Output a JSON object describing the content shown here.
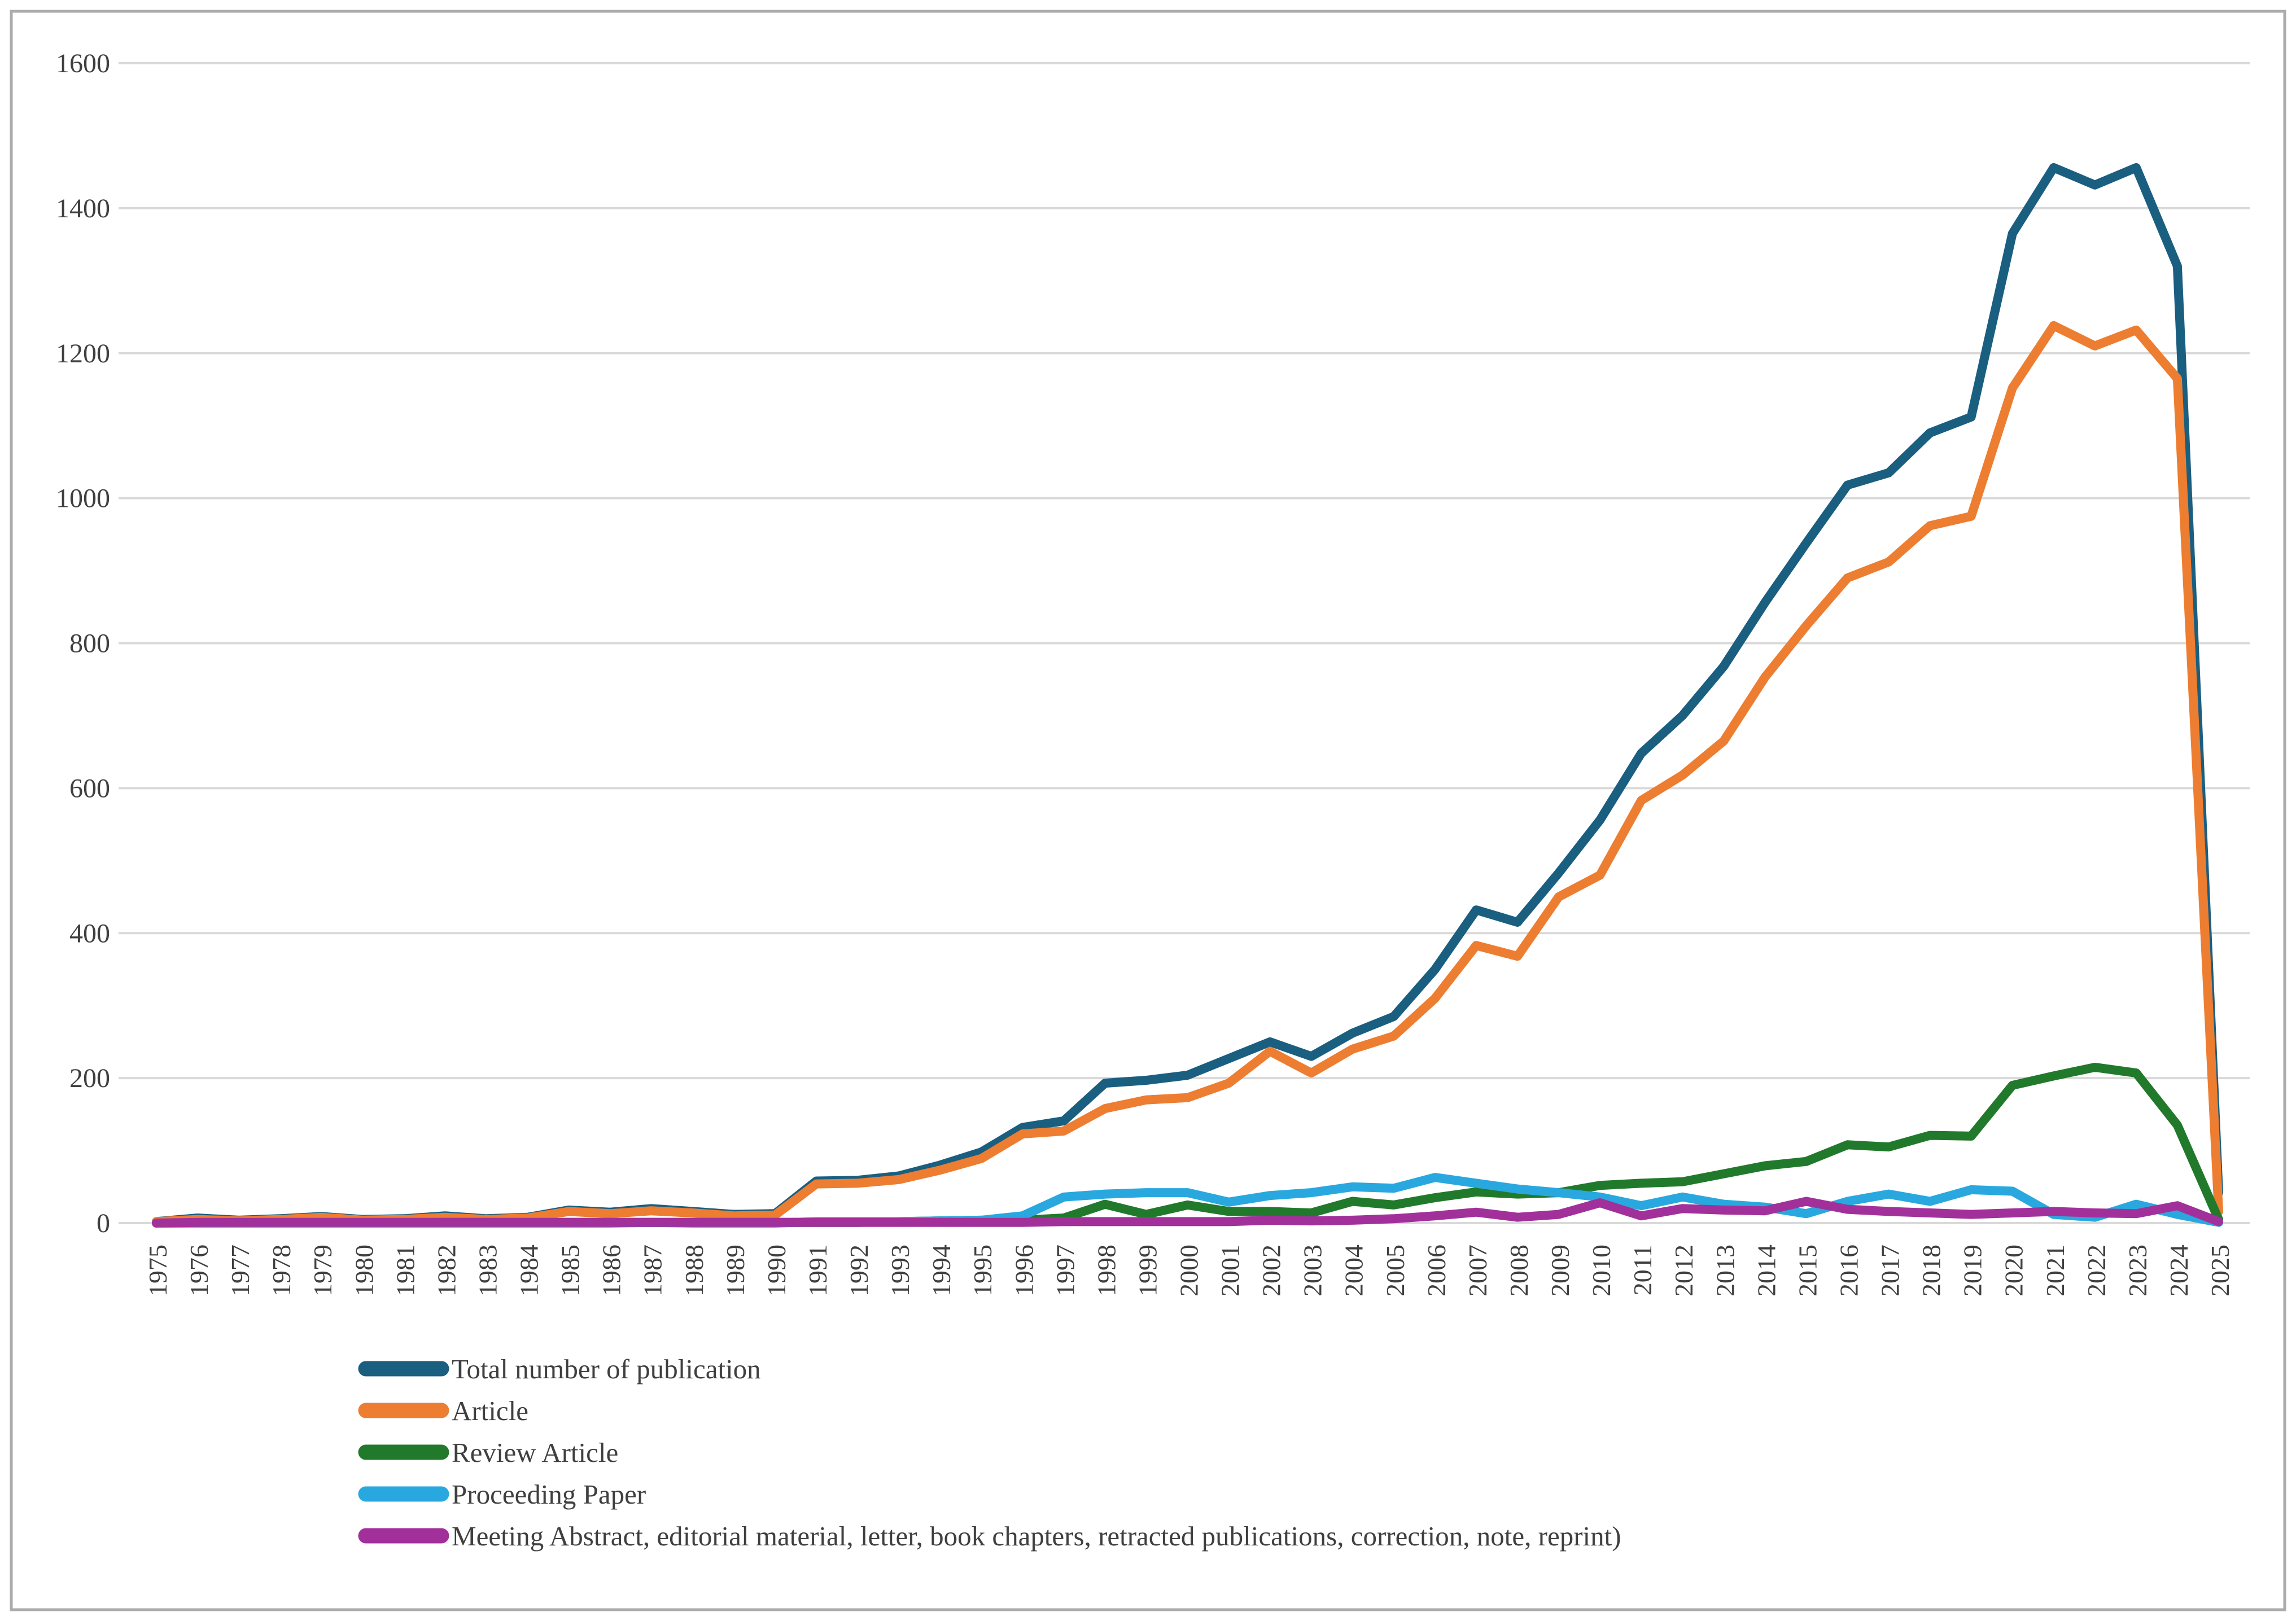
{
  "frame": {
    "border_color": "#ABABAB",
    "background": "#FFFFFF"
  },
  "axis": {
    "tick_color": "#3F3F3F",
    "grid_color": "#D9D9D9",
    "y_tick_labels": [
      "0",
      "200",
      "400",
      "600",
      "800",
      "1000",
      "1200",
      "1400",
      "1600"
    ]
  },
  "legend": {
    "items": [
      {
        "label": "Total number of publication",
        "color": "#1A5E80"
      },
      {
        "label": "Article",
        "color": "#ED7D31"
      },
      {
        "label": "Review Article",
        "color": "#217A2B"
      },
      {
        "label": "Proceeding Paper",
        "color": "#29A8DF"
      },
      {
        "label": "Meeting Abstract, editorial material, letter, book chapters, retracted publications, correction, note, reprint)",
        "color": "#A2309B"
      }
    ]
  },
  "chart_data": {
    "type": "line",
    "title": "",
    "xlabel": "",
    "ylabel": "",
    "ylim": [
      0,
      1600
    ],
    "yticks": [
      0,
      200,
      400,
      600,
      800,
      1000,
      1200,
      1400,
      1600
    ],
    "grid": true,
    "legend_position": "bottom-left",
    "x": [
      1975,
      1976,
      1977,
      1978,
      1979,
      1980,
      1981,
      1982,
      1983,
      1984,
      1985,
      1986,
      1987,
      1988,
      1989,
      1990,
      1991,
      1992,
      1993,
      1994,
      1995,
      1996,
      1997,
      1998,
      1999,
      2000,
      2001,
      2002,
      2003,
      2004,
      2005,
      2006,
      2007,
      2008,
      2009,
      2010,
      2011,
      2012,
      2013,
      2014,
      2015,
      2016,
      2017,
      2018,
      2019,
      2020,
      2021,
      2022,
      2023,
      2024,
      2025
    ],
    "series": [
      {
        "name": "Total number of publication",
        "color": "#1A5E80",
        "values": [
          2,
          7,
          4,
          6,
          9,
          5,
          6,
          10,
          6,
          8,
          18,
          15,
          20,
          16,
          12,
          13,
          58,
          59,
          65,
          80,
          98,
          132,
          141,
          193,
          197,
          204,
          227,
          250,
          230,
          262,
          285,
          350,
          432,
          415,
          483,
          556,
          648,
          700,
          768,
          856,
          938,
          1018,
          1035,
          1090,
          1112,
          1365,
          1456,
          1432,
          1456,
          1320,
          42
        ]
      },
      {
        "name": "Article",
        "color": "#ED7D31",
        "values": [
          2,
          5,
          3,
          5,
          8,
          4,
          5,
          8,
          5,
          7,
          16,
          13,
          17,
          14,
          10,
          11,
          54,
          55,
          60,
          73,
          89,
          123,
          127,
          158,
          170,
          173,
          193,
          237,
          207,
          240,
          258,
          310,
          383,
          368,
          450,
          480,
          583,
          618,
          665,
          753,
          824,
          890,
          912,
          962,
          975,
          1152,
          1238,
          1210,
          1232,
          1165,
          16
        ]
      },
      {
        "name": "Review Article",
        "color": "#217A2B",
        "values": [
          0,
          0,
          0,
          0,
          0,
          0,
          0,
          1,
          1,
          0,
          1,
          1,
          1,
          1,
          1,
          1,
          1,
          1,
          2,
          3,
          4,
          4,
          7,
          26,
          12,
          25,
          16,
          16,
          14,
          30,
          25,
          35,
          43,
          40,
          42,
          52,
          55,
          57,
          68,
          79,
          85,
          108,
          105,
          121,
          120,
          190,
          203,
          215,
          207,
          135,
          5
        ]
      },
      {
        "name": "Proceeding Paper",
        "color": "#29A8DF",
        "values": [
          0,
          0,
          0,
          0,
          0,
          0,
          0,
          0,
          0,
          0,
          0,
          0,
          1,
          0,
          0,
          0,
          2,
          2,
          2,
          3,
          4,
          10,
          36,
          40,
          42,
          42,
          29,
          38,
          42,
          50,
          48,
          63,
          55,
          47,
          42,
          36,
          24,
          36,
          26,
          22,
          13,
          30,
          40,
          30,
          46,
          44,
          12,
          8,
          26,
          12,
          1
        ]
      },
      {
        "name": "Meeting Abstract, editorial material, letter, book chapters, retracted publications, correction, note, reprint)",
        "color": "#A2309B",
        "values": [
          0,
          1,
          1,
          1,
          1,
          1,
          1,
          1,
          1,
          1,
          1,
          1,
          1,
          1,
          1,
          1,
          1,
          1,
          1,
          1,
          1,
          1,
          2,
          2,
          2,
          2,
          2,
          4,
          3,
          4,
          6,
          10,
          15,
          8,
          12,
          28,
          10,
          20,
          18,
          17,
          30,
          19,
          16,
          14,
          12,
          14,
          16,
          14,
          13,
          24,
          2
        ]
      }
    ]
  }
}
